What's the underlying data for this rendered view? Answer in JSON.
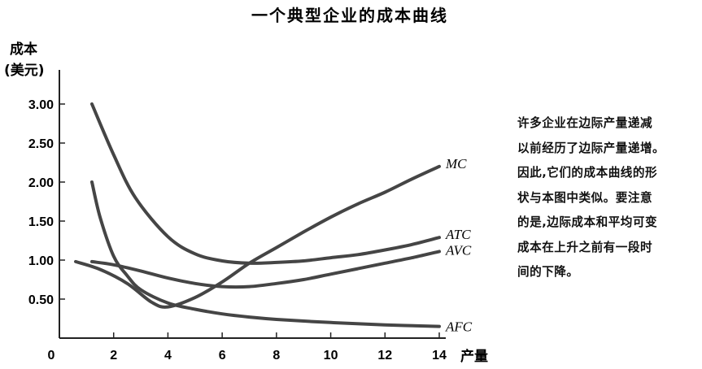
{
  "chart_data": {
    "type": "line",
    "title": "一个典型企业的成本曲线",
    "ylabel_line1": "成本",
    "ylabel_line2": "(美元)",
    "xlabel": "产量",
    "xlim": [
      0,
      14
    ],
    "ylim": [
      0,
      3.25
    ],
    "x_ticks": [
      {
        "value": 0,
        "label": "0"
      },
      {
        "value": 2,
        "label": "2"
      },
      {
        "value": 4,
        "label": "4"
      },
      {
        "value": 6,
        "label": "6"
      },
      {
        "value": 8,
        "label": "8"
      },
      {
        "value": 10,
        "label": "10"
      },
      {
        "value": 12,
        "label": "12"
      },
      {
        "value": 14,
        "label": "14"
      }
    ],
    "y_ticks": [
      {
        "value": 0.5,
        "label": "0.50"
      },
      {
        "value": 1.0,
        "label": "1.00"
      },
      {
        "value": 1.5,
        "label": "1.50"
      },
      {
        "value": 2.0,
        "label": "2.00"
      },
      {
        "value": 2.5,
        "label": "2.50"
      },
      {
        "value": 3.0,
        "label": "3.00"
      }
    ],
    "grid": false,
    "line_color": "#454545",
    "series": [
      {
        "name": "MC",
        "x": [
          0.6,
          1.5,
          2.5,
          3.4,
          4.0,
          5.0,
          6.0,
          7.0,
          8.0,
          9.0,
          10.0,
          11.0,
          12.0,
          13.0,
          14.0
        ],
        "y": [
          0.98,
          0.88,
          0.7,
          0.46,
          0.4,
          0.52,
          0.72,
          0.96,
          1.16,
          1.36,
          1.55,
          1.72,
          1.87,
          2.04,
          2.2
        ]
      },
      {
        "name": "ATC",
        "x": [
          1.2,
          2.0,
          2.8,
          4.0,
          5.0,
          6.0,
          7.0,
          8.0,
          9.0,
          10.0,
          11.0,
          12.0,
          13.0,
          14.0
        ],
        "y": [
          3.0,
          2.35,
          1.8,
          1.3,
          1.08,
          0.99,
          0.96,
          0.97,
          0.99,
          1.03,
          1.07,
          1.13,
          1.2,
          1.29
        ]
      },
      {
        "name": "AVC",
        "x": [
          1.2,
          2.0,
          3.0,
          4.0,
          5.0,
          6.0,
          7.0,
          8.0,
          9.0,
          10.0,
          11.0,
          12.0,
          13.0,
          14.0
        ],
        "y": [
          0.98,
          0.94,
          0.86,
          0.77,
          0.7,
          0.66,
          0.66,
          0.7,
          0.75,
          0.82,
          0.89,
          0.96,
          1.03,
          1.11
        ]
      },
      {
        "name": "AFC",
        "x": [
          1.2,
          1.5,
          2.0,
          2.5,
          3.0,
          4.0,
          5.0,
          6.0,
          7.0,
          8.0,
          10.0,
          12.0,
          14.0
        ],
        "y": [
          2.0,
          1.55,
          1.05,
          0.8,
          0.62,
          0.45,
          0.37,
          0.31,
          0.27,
          0.24,
          0.2,
          0.17,
          0.15
        ]
      }
    ]
  },
  "note": {
    "lines": [
      "许多企业在边际产量递减",
      "以前经历了边际产量递增。",
      "因此,它们的成本曲线的形",
      "状与本图中类似。要注意",
      "的是,边际成本和平均可变",
      "成本在上升之前有一段时",
      "间的下降。"
    ]
  }
}
